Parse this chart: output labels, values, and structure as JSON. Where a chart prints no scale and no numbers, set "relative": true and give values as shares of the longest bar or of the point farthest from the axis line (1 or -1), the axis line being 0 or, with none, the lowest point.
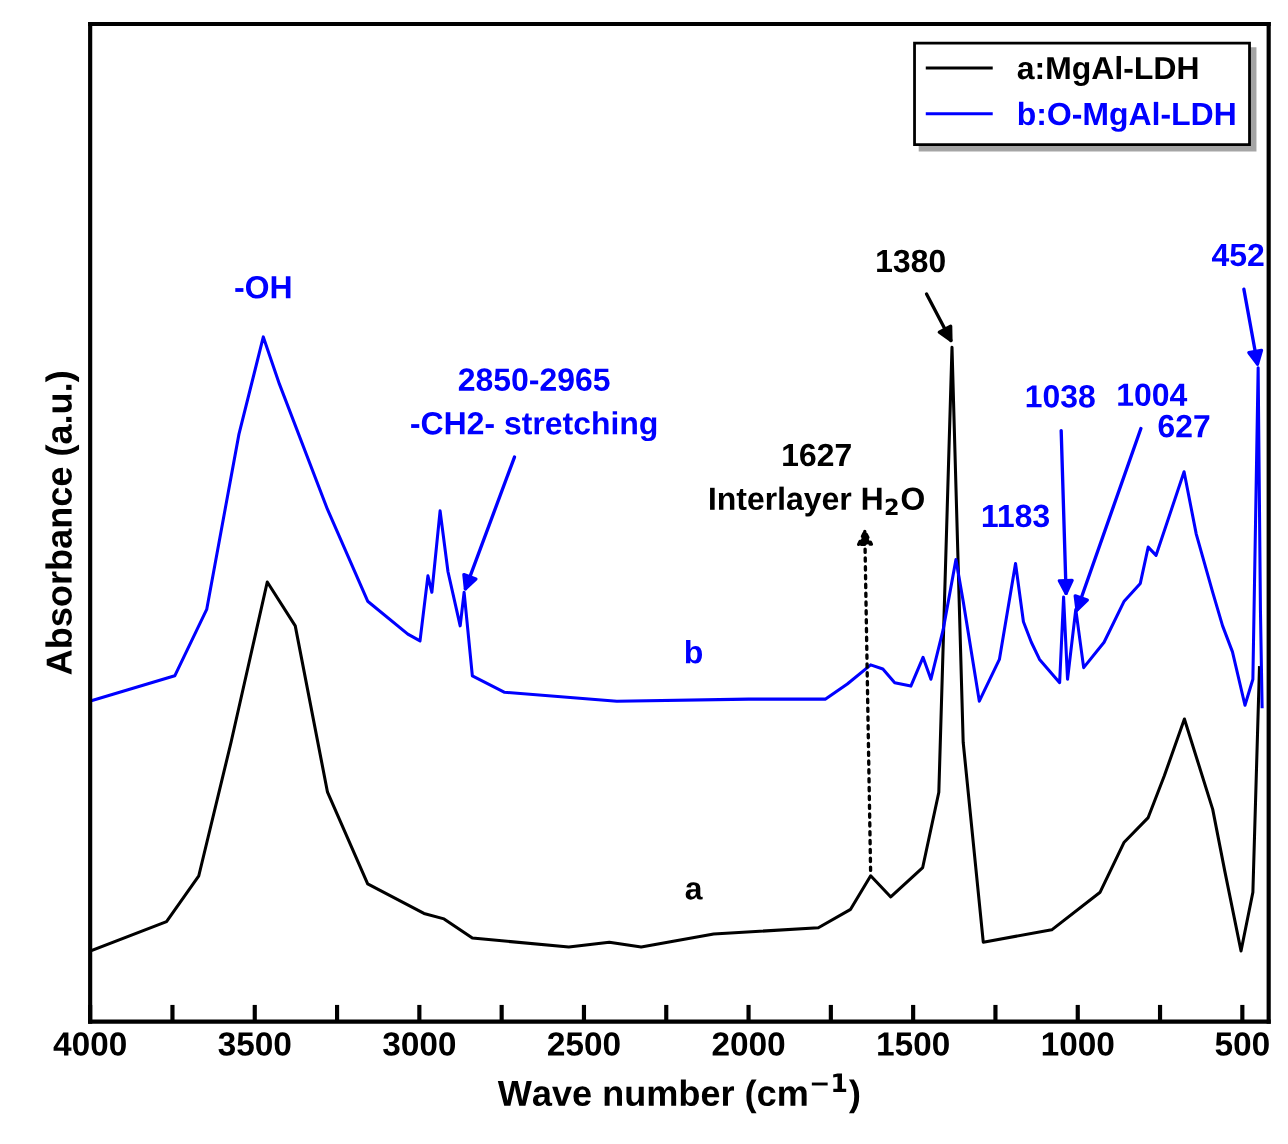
{
  "chart_data": {
    "type": "line",
    "relative": true,
    "xlabel": "Wave number (cm$^{−1}$)",
    "ylabel": "Absorbance (a.u.)",
    "xlim": [
      4000,
      420
    ],
    "xticks": [
      4000,
      {
        "value": 3750,
        "label": null
      },
      3500,
      {
        "value": 3250,
        "label": null
      },
      3000,
      {
        "value": 2750,
        "label": null
      },
      2500,
      {
        "value": 2250,
        "label": null
      },
      2000,
      {
        "value": 1750,
        "label": null
      },
      1500,
      {
        "value": 1250,
        "label": null
      },
      1000,
      {
        "value": 750,
        "label": null
      },
      500
    ],
    "tick_labels": "x",
    "grid": false,
    "legend": "top right",
    "line_style": "solid",
    "marker": "none",
    "series": [
      {
        "name": "a:MgAl-LDH",
        "color": "#000000",
        "x": [
          4000,
          3768,
          3670,
          3572,
          3462,
          3377,
          3279,
          3157,
          2986,
          2925,
          2839,
          2546,
          2423,
          2326,
          2106,
          1788,
          1690,
          1629,
          1568,
          1471,
          1422,
          1382,
          1348,
          1287,
          1079,
          932,
          859,
          786,
          737,
          676,
          590,
          553,
          504,
          468,
          448
        ],
        "values": [
          0.103,
          0.146,
          0.213,
          0.408,
          0.642,
          0.578,
          0.335,
          0.201,
          0.158,
          0.15,
          0.122,
          0.109,
          0.116,
          0.109,
          0.128,
          0.137,
          0.164,
          0.213,
          0.182,
          0.225,
          0.335,
          0.985,
          0.408,
          0.116,
          0.134,
          0.189,
          0.262,
          0.298,
          0.359,
          0.442,
          0.31,
          0.219,
          0.103,
          0.189,
          0.517
        ]
      },
      {
        "name": "b:O-MgAl-LDH",
        "color": "#0000ff",
        "x": [
          4000,
          3743,
          3646,
          3548,
          3474,
          3425,
          3279,
          3157,
          3035,
          2998,
          2974,
          2962,
          2937,
          2913,
          2876,
          2864,
          2839,
          2741,
          2400,
          2000,
          1766,
          1700,
          1629,
          1592,
          1556,
          1507,
          1470,
          1446,
          1409,
          1370,
          1348,
          1299,
          1238,
          1189,
          1165,
          1141,
          1116,
          1055,
          1043,
          1031,
          1006,
          982,
          920,
          859,
          810,
          786,
          762,
          677,
          640,
          590,
          560,
          530,
          492,
          468,
          452,
          445,
          440
        ],
        "values": [
          0.468,
          0.505,
          0.602,
          0.858,
          1.0,
          0.931,
          0.748,
          0.614,
          0.566,
          0.556,
          0.651,
          0.627,
          0.746,
          0.657,
          0.578,
          0.627,
          0.505,
          0.481,
          0.468,
          0.471,
          0.471,
          0.493,
          0.521,
          0.515,
          0.495,
          0.49,
          0.532,
          0.5,
          0.572,
          0.675,
          0.614,
          0.468,
          0.529,
          0.669,
          0.584,
          0.554,
          0.529,
          0.495,
          0.62,
          0.5,
          0.602,
          0.517,
          0.554,
          0.614,
          0.64,
          0.693,
          0.681,
          0.803,
          0.712,
          0.627,
          0.578,
          0.54,
          0.462,
          0.5,
          0.955,
          0.6,
          0.46
        ]
      }
    ],
    "annotations": [
      {
        "text": "-OH",
        "x": 3474,
        "y": 1.0
      },
      {
        "text": "2850-2965\n-CH2- stretching",
        "x": 2864,
        "y": 0.627
      },
      {
        "text": "1627\nInterlayer H$_{2}$O",
        "x": 1629,
        "y": 0.213
      },
      {
        "text": "1380",
        "x": 1380,
        "y": 0.99
      },
      {
        "text": "1183",
        "x": 1189,
        "y": 0.669
      },
      {
        "text": "1038",
        "x": 1035,
        "y": 0.62
      },
      {
        "text": "1004",
        "x": 1006,
        "y": 0.596
      },
      {
        "text": "627",
        "x": 677,
        "y": 0.803
      },
      {
        "text": "452",
        "x": 452,
        "y": 0.955
      },
      {
        "text": "b",
        "x": 2167,
        "y": 0.47
      },
      {
        "text": "a",
        "x": 2167,
        "y": 0.125
      }
    ]
  }
}
